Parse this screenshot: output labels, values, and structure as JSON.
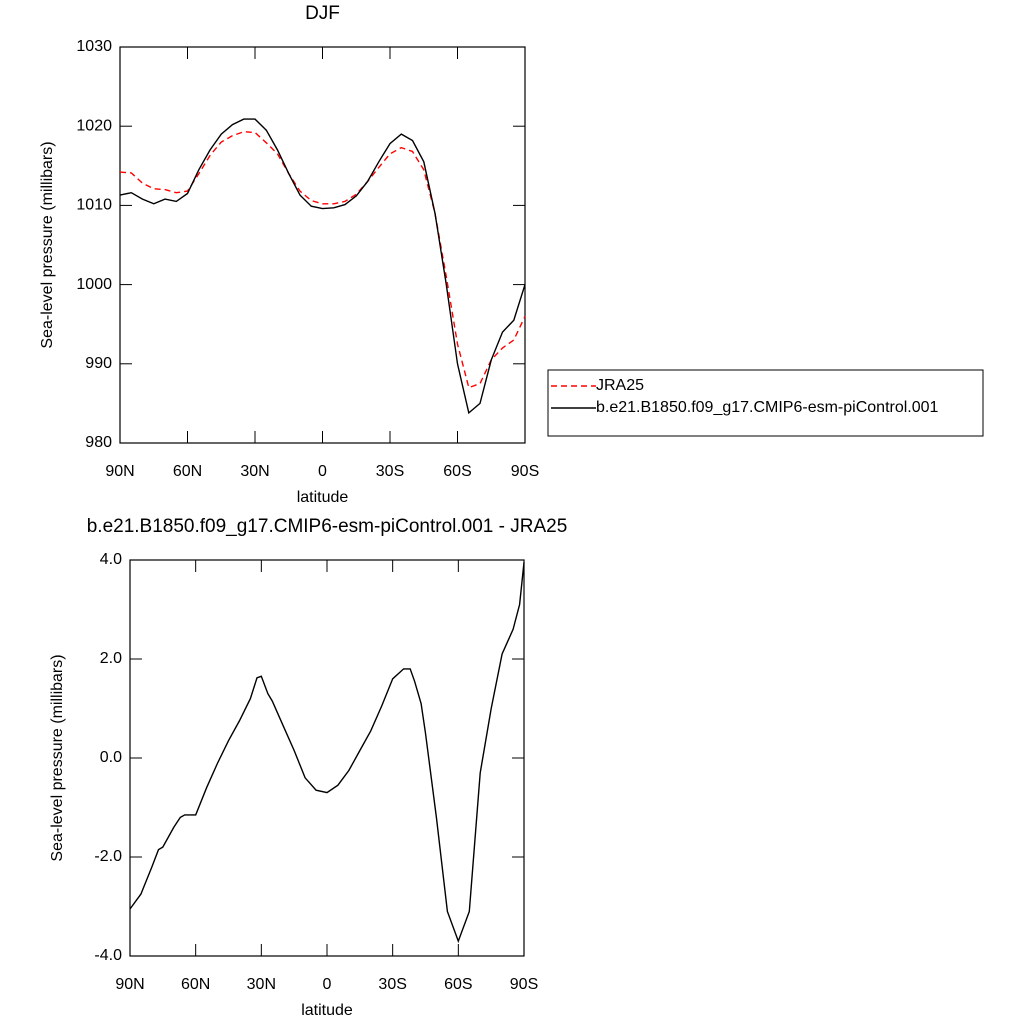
{
  "chart_data": [
    {
      "type": "line",
      "title": "DJF",
      "x_label": "latitude",
      "y_label": "Sea-level pressure (millibars)",
      "x": [
        90,
        85,
        80,
        75,
        70,
        65,
        60,
        55,
        50,
        45,
        40,
        35,
        30,
        25,
        20,
        15,
        10,
        5,
        0,
        -5,
        -10,
        -15,
        -20,
        -25,
        -30,
        -35,
        -40,
        -45,
        -50,
        -55,
        -60,
        -65,
        -70,
        -75,
        -80,
        -85,
        -90
      ],
      "series": [
        {
          "name": "JRA25",
          "color": "#ff0000",
          "dashed": true,
          "values": [
            1014.2,
            1014.1,
            1012.8,
            1012.1,
            1012.0,
            1011.6,
            1011.8,
            1014.0,
            1016.3,
            1018.0,
            1018.8,
            1019.3,
            1019.2,
            1017.9,
            1016.5,
            1014.0,
            1011.8,
            1010.6,
            1010.2,
            1010.2,
            1010.5,
            1011.4,
            1013.0,
            1014.8,
            1016.5,
            1017.3,
            1016.8,
            1014.5,
            1009.0,
            1001.0,
            992.5,
            987.0,
            987.5,
            990.5,
            992.0,
            993.0,
            996.0
          ]
        },
        {
          "name": "b.e21.B1850.f09_g17.CMIP6-esm-piControl.001",
          "color": "#000000",
          "dashed": false,
          "values": [
            1011.3,
            1011.6,
            1010.8,
            1010.2,
            1010.8,
            1010.5,
            1011.5,
            1014.5,
            1017.0,
            1019.0,
            1020.2,
            1020.9,
            1020.9,
            1019.5,
            1017.0,
            1014.0,
            1011.3,
            1009.9,
            1009.6,
            1009.7,
            1010.1,
            1011.2,
            1013.0,
            1015.5,
            1017.8,
            1019.0,
            1018.2,
            1015.5,
            1009.0,
            1000.0,
            990.0,
            983.8,
            985.0,
            990.5,
            994.0,
            995.5,
            1000.0
          ]
        }
      ],
      "xlim": [
        90,
        -90
      ],
      "xticks": [
        {
          "value": 90,
          "label": "90N"
        },
        {
          "value": 60,
          "label": "60N"
        },
        {
          "value": 30,
          "label": "30N"
        },
        0,
        {
          "value": -30,
          "label": "30S"
        },
        {
          "value": -60,
          "label": "60S"
        },
        {
          "value": -90,
          "label": "90S"
        }
      ],
      "ylim": [
        980,
        1030
      ],
      "yticks": [
        980,
        990,
        1000,
        1010,
        1020,
        1030
      ],
      "legend": "right"
    },
    {
      "type": "line",
      "title": "b.e21.B1850.f09_g17.CMIP6-esm-piControl.001 - JRA25",
      "x_label": "latitude",
      "y_label": "Sea-level pressure (millibars)",
      "x": [
        90,
        85,
        80,
        77,
        75,
        70,
        67,
        65,
        60,
        55,
        50,
        45,
        40,
        35,
        32,
        30,
        27,
        25,
        20,
        15,
        10,
        5,
        0,
        -5,
        -10,
        -15,
        -20,
        -25,
        -30,
        -35,
        -38,
        -40,
        -43,
        -45,
        -50,
        -55,
        -60,
        -65,
        -70,
        -75,
        -80,
        -85,
        -88,
        -90
      ],
      "series": [
        {
          "color": "#000000",
          "dashed": false,
          "values": [
            -3.05,
            -2.75,
            -2.2,
            -1.85,
            -1.8,
            -1.4,
            -1.2,
            -1.15,
            -1.15,
            -0.6,
            -0.1,
            0.35,
            0.75,
            1.2,
            1.62,
            1.65,
            1.3,
            1.15,
            0.65,
            0.15,
            -0.4,
            -0.65,
            -0.7,
            -0.55,
            -0.25,
            0.15,
            0.55,
            1.05,
            1.6,
            1.8,
            1.8,
            1.55,
            1.1,
            0.5,
            -1.2,
            -3.1,
            -3.7,
            -3.1,
            -0.3,
            1.0,
            2.1,
            2.6,
            3.1,
            3.95
          ]
        }
      ],
      "xlim": [
        90,
        -90
      ],
      "xticks": [
        {
          "value": 90,
          "label": "90N"
        },
        {
          "value": 60,
          "label": "60N"
        },
        {
          "value": 30,
          "label": "30N"
        },
        0,
        {
          "value": -30,
          "label": "30S"
        },
        {
          "value": -60,
          "label": "60S"
        },
        {
          "value": -90,
          "label": "90S"
        }
      ],
      "ylim": [
        -4,
        4
      ],
      "yticks": [
        {
          "value": -4,
          "label": "-4.0"
        },
        {
          "value": -2,
          "label": "-2.0"
        },
        {
          "value": 0,
          "label": "0.0"
        },
        {
          "value": 2,
          "label": "2.0"
        },
        {
          "value": 4,
          "label": "4.0"
        }
      ]
    }
  ]
}
